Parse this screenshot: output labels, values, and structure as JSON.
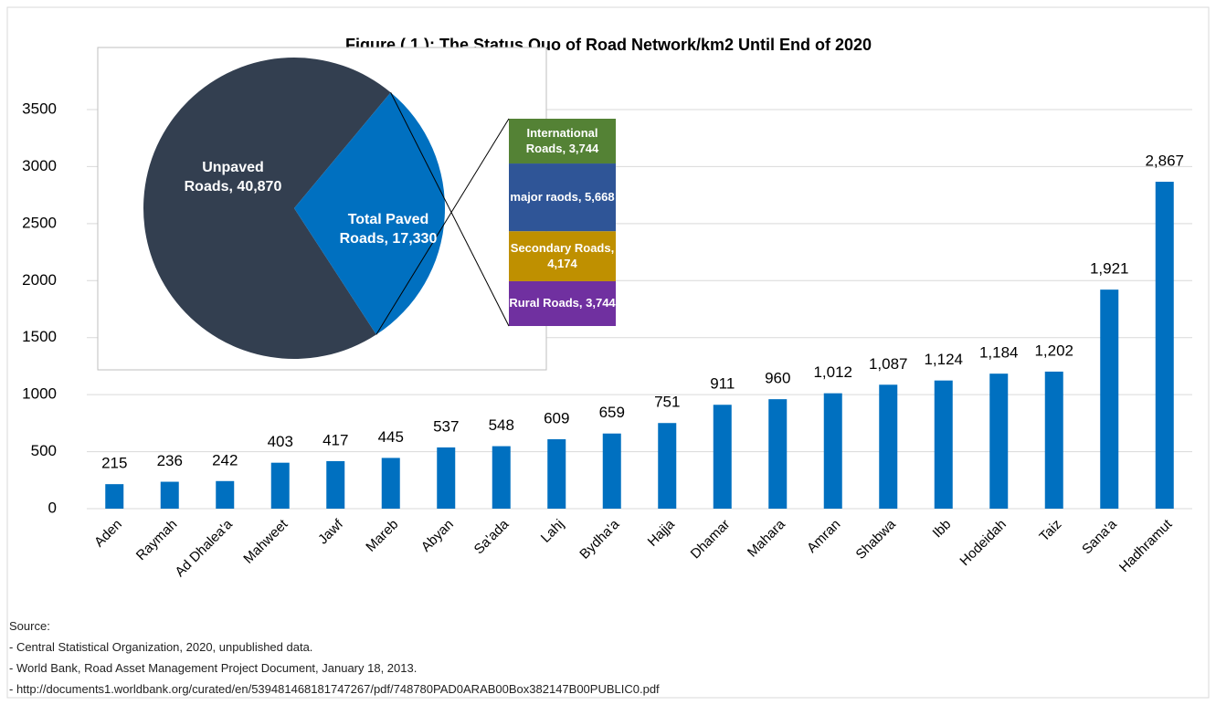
{
  "chart_data": [
    {
      "type": "bar",
      "title": "Figure ( 1  ): The Status Quo of Road Network/km2 Until End of 2020",
      "categories": [
        "Aden",
        "Raymah",
        "Ad Dhalea'a",
        "Mahweet",
        "Jawf",
        "Mareb",
        "Abyan",
        "Sa'ada",
        "Lahj",
        "Bydha'a",
        "Hajja",
        "Dhamar",
        "Mahara",
        "Amran",
        "Shabwa",
        "Ibb",
        "Hodeidah",
        "Taiz",
        "Sana'a",
        "Hadhramut"
      ],
      "values": [
        215,
        236,
        242,
        403,
        417,
        445,
        537,
        548,
        609,
        659,
        751,
        911,
        960,
        1012,
        1087,
        1124,
        1184,
        1202,
        1921,
        2867
      ],
      "value_labels": [
        "215",
        "236",
        "242",
        "403",
        "417",
        "445",
        "537",
        "548",
        "609",
        "659",
        "751",
        "911",
        "960",
        "1,012",
        "1,087",
        "1,124",
        "1,184",
        "1,202",
        "1,921",
        "2,867"
      ],
      "color": "#0070c0",
      "ylim": [
        0,
        3500
      ],
      "yticks": [
        0,
        500,
        1000,
        1500,
        2000,
        2500,
        3000,
        3500
      ],
      "grid": true
    },
    {
      "type": "pie",
      "labels": [
        "Unpaved Roads, 40,870",
        "Total Paved Roads, 17,330"
      ],
      "values": [
        40870,
        17330
      ],
      "colors": [
        "#333f50",
        "#0070c0"
      ]
    },
    {
      "type": "stacked-column",
      "labels": [
        "International Roads, 3,744",
        "major raods, 5,668",
        "Secondary Roads, 4,174",
        "Rural Roads, 3,744"
      ],
      "values": [
        3744,
        5668,
        4174,
        3744
      ],
      "colors": [
        "#548235",
        "#2f5597",
        "#bf9000",
        "#7030a0"
      ]
    }
  ],
  "notes": [
    "Source:",
    "- Central Statistical Organization, 2020, unpublished data.",
    "- World Bank, Road Asset Management Project Document, January 18, 2013.",
    "- http://documents1.worldbank.org/curated/en/539481468181747267/pdf/748780PAD0ARAB00Box382147B00PUBLIC0.pdf"
  ]
}
